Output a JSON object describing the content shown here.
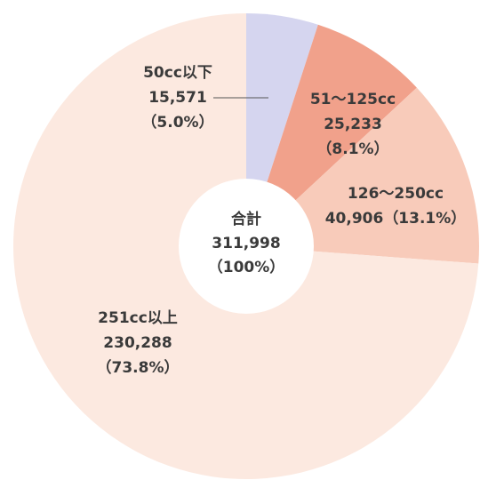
{
  "chart_data": {
    "type": "pie",
    "categories": [
      "50cc以下",
      "51～125cc",
      "126～250cc",
      "251cc以上"
    ],
    "values": [
      15571,
      25233,
      40906,
      230288
    ],
    "value_labels": [
      "15,571",
      "25,233",
      "40,906",
      "230,288"
    ],
    "percent_labels": [
      "（5.0%）",
      "（8.1%）",
      "（13.1%）",
      "（73.8%）"
    ],
    "colors": [
      "#d5d5ef",
      "#f1a18b",
      "#f8cbba",
      "#fce9e0"
    ],
    "center_title": "合計",
    "total_label": "311,998",
    "total_percent_label": "（100%）"
  }
}
